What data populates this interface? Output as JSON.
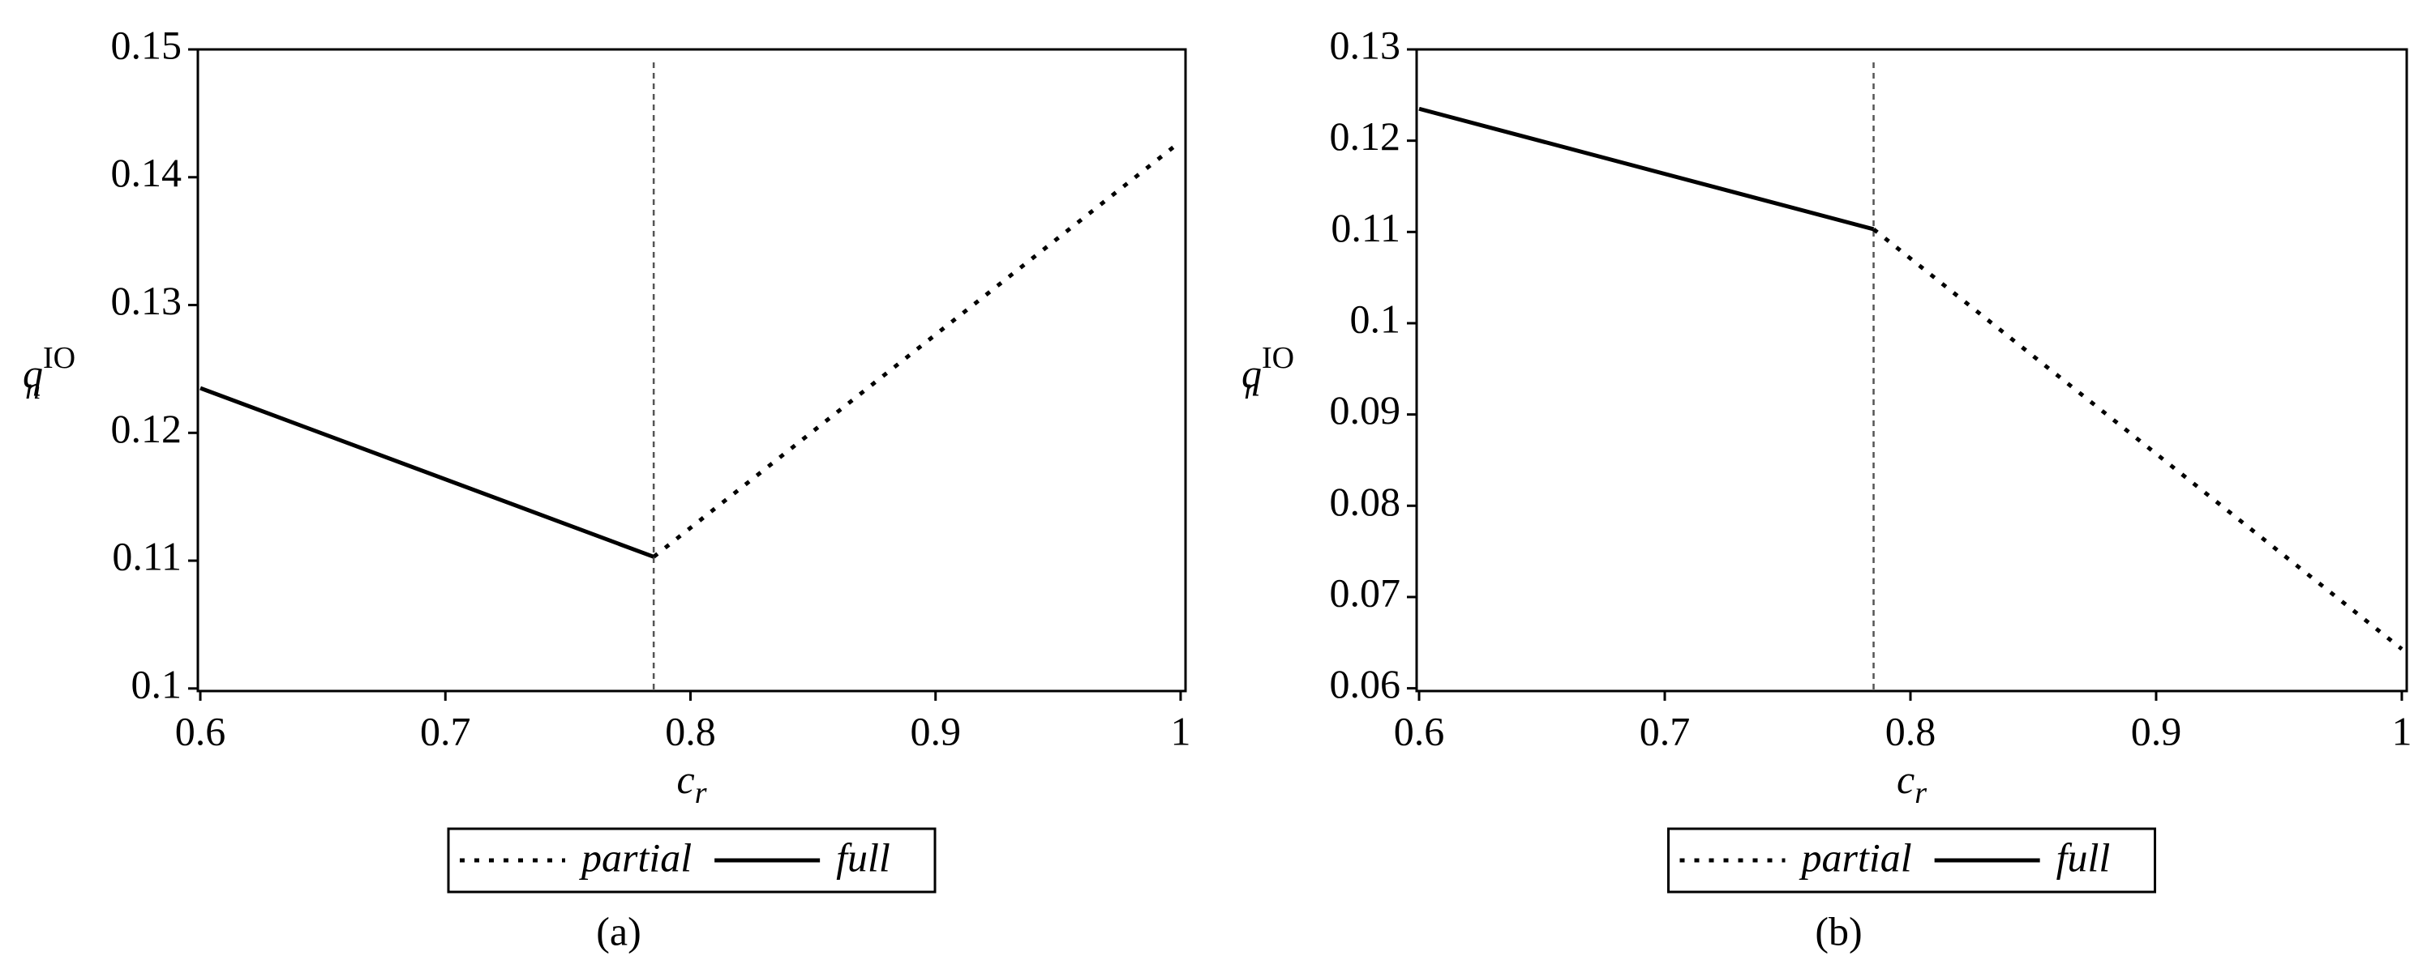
{
  "chart_data": [
    {
      "type": "line",
      "caption": "(a)",
      "xlabel": {
        "base": "c",
        "sub": "r"
      },
      "ylabel": {
        "base": "q",
        "sub": "n",
        "sup": "IO"
      },
      "xlim": [
        0.599,
        1.002
      ],
      "ylim": [
        0.0998,
        0.15
      ],
      "xticks": [
        0.6,
        0.7,
        0.8,
        0.9,
        1
      ],
      "yticks": [
        0.1,
        0.11,
        0.12,
        0.13,
        0.14,
        0.15
      ],
      "vline": 0.785,
      "series": [
        {
          "name": "partial",
          "color": "#000000",
          "dash": "dotted",
          "x": [
            0.785,
            1
          ],
          "values": [
            0.1103,
            0.1428
          ]
        },
        {
          "name": "full",
          "color": "#000000",
          "dash": "solid",
          "x": [
            0.6,
            0.785
          ],
          "values": [
            0.1235,
            0.1103
          ]
        }
      ]
    },
    {
      "type": "line",
      "caption": "(b)",
      "xlabel": {
        "base": "c",
        "sub": "r"
      },
      "ylabel": {
        "base": "q",
        "sub": "r",
        "sup": "IO"
      },
      "xlim": [
        0.599,
        1.002
      ],
      "ylim": [
        0.0597,
        0.13
      ],
      "xticks": [
        0.6,
        0.7,
        0.8,
        0.9,
        1
      ],
      "yticks": [
        0.06,
        0.07,
        0.08,
        0.09,
        0.1,
        0.11,
        0.12,
        0.13
      ],
      "vline": 0.785,
      "series": [
        {
          "name": "partial",
          "color": "#000000",
          "dash": "dotted",
          "x": [
            0.785,
            1
          ],
          "values": [
            0.1103,
            0.0643
          ]
        },
        {
          "name": "full",
          "color": "#000000",
          "dash": "solid",
          "x": [
            0.6,
            0.785
          ],
          "values": [
            0.1235,
            0.1103
          ]
        }
      ]
    }
  ]
}
